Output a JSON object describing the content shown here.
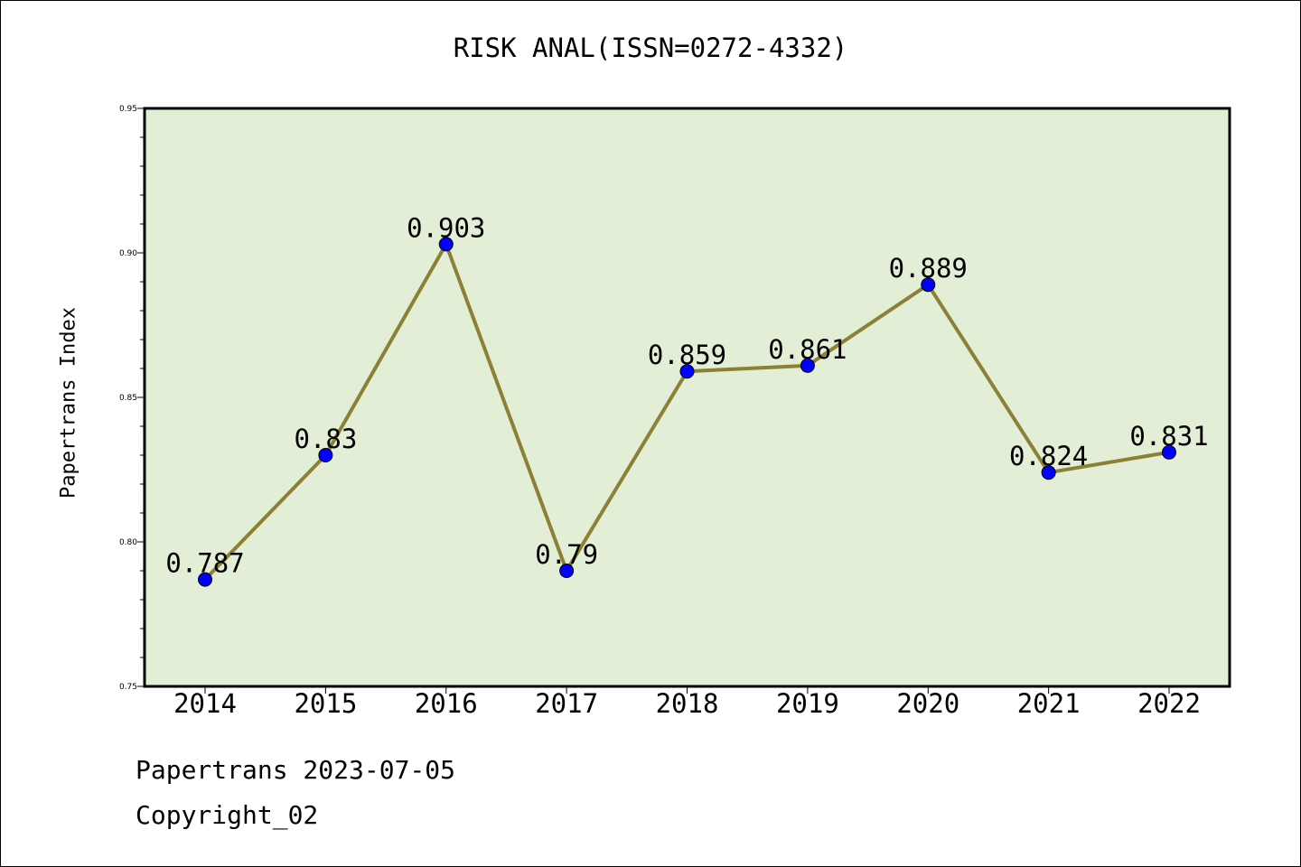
{
  "title": "RISK ANAL(ISSN=0272-4332)",
  "footer": {
    "date_line": "Papertrans 2023-07-05",
    "copyright": "Copyright_02"
  },
  "colors": {
    "plot_background": "#e2eed5",
    "line": "#8c8035",
    "marker": "#0000ff"
  },
  "chart_data": {
    "type": "line",
    "title": "RISK ANAL(ISSN=0272-4332)",
    "xlabel": "",
    "ylabel": "Papertrans Index",
    "categories": [
      "2014",
      "2015",
      "2016",
      "2017",
      "2018",
      "2019",
      "2020",
      "2021",
      "2022"
    ],
    "series": [
      {
        "values": [
          0.787,
          0.83,
          0.903,
          0.79,
          0.859,
          0.861,
          0.889,
          0.824,
          0.831
        ],
        "labels": [
          "0.787",
          "0.83",
          "0.903",
          "0.79",
          "0.859",
          "0.861",
          "0.889",
          "0.824",
          "0.831"
        ]
      }
    ],
    "ylim": [
      0.75,
      0.95
    ],
    "yticks": [
      0.75,
      0.8,
      0.85,
      0.9,
      0.95
    ],
    "ytick_labels": [
      "0.75",
      "0.80",
      "0.85",
      "0.90",
      "0.95"
    ],
    "grid": false,
    "legend": "none"
  }
}
